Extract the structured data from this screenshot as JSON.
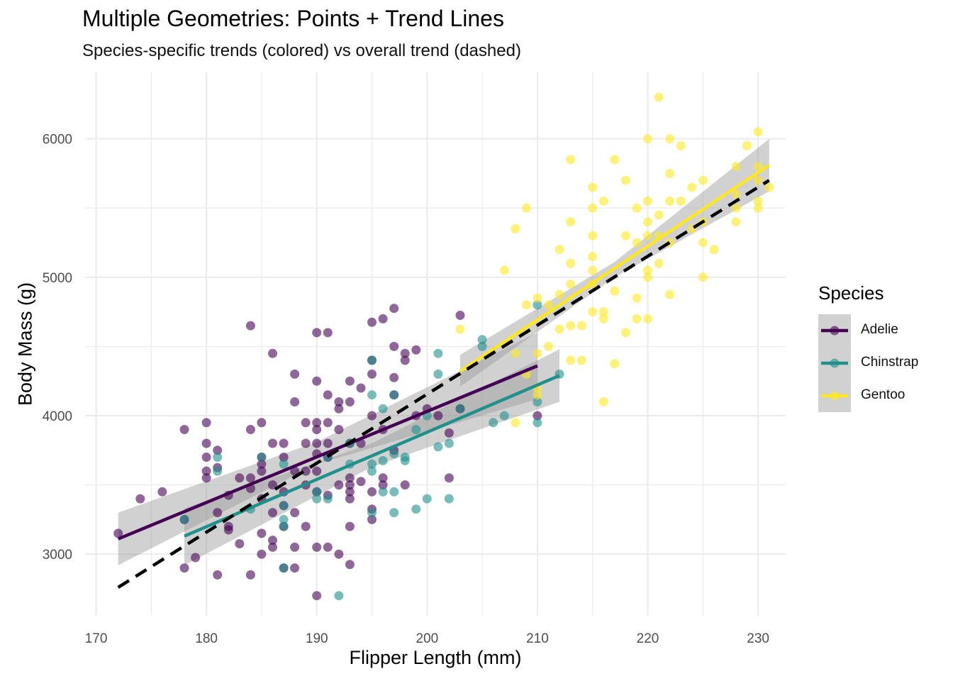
{
  "chart_data": {
    "type": "scatter",
    "title": "Multiple Geometries: Points + Trend Lines",
    "subtitle": "Species-specific trends (colored) vs overall trend (dashed)",
    "xlabel": "Flipper Length (mm)",
    "ylabel": "Body Mass (g)",
    "xlim": [
      169,
      232.5
    ],
    "ylim": [
      2555,
      6480
    ],
    "x_ticks": [
      170,
      180,
      190,
      200,
      210,
      220,
      230
    ],
    "y_ticks": [
      3000,
      4000,
      5000,
      6000
    ],
    "grid": true,
    "legend": {
      "title": "Species",
      "position": "right"
    },
    "series": [
      {
        "name": "Adelie",
        "color": "#440154",
        "points": [
          [
            172,
            3150
          ],
          [
            174,
            3400
          ],
          [
            176,
            3450
          ],
          [
            178,
            3900
          ],
          [
            178,
            3250
          ],
          [
            178,
            2900
          ],
          [
            179,
            2975
          ],
          [
            180,
            3950
          ],
          [
            180,
            3800
          ],
          [
            180,
            3700
          ],
          [
            180,
            3600
          ],
          [
            180,
            3550
          ],
          [
            181,
            3750
          ],
          [
            181,
            3625
          ],
          [
            181,
            3300
          ],
          [
            181,
            2850
          ],
          [
            182,
            3425
          ],
          [
            182,
            3200
          ],
          [
            182,
            3175
          ],
          [
            183,
            3550
          ],
          [
            183,
            3075
          ],
          [
            184,
            4650
          ],
          [
            184,
            3900
          ],
          [
            184,
            3550
          ],
          [
            184,
            3475
          ],
          [
            184,
            2850
          ],
          [
            185,
            3950
          ],
          [
            185,
            3700
          ],
          [
            185,
            3650
          ],
          [
            185,
            3600
          ],
          [
            185,
            3400
          ],
          [
            185,
            3150
          ],
          [
            185,
            3000
          ],
          [
            186,
            4450
          ],
          [
            186,
            3800
          ],
          [
            186,
            3500
          ],
          [
            186,
            3300
          ],
          [
            186,
            3100
          ],
          [
            186,
            3050
          ],
          [
            187,
            3800
          ],
          [
            187,
            3700
          ],
          [
            187,
            3450
          ],
          [
            187,
            3350
          ],
          [
            187,
            3200
          ],
          [
            187,
            2900
          ],
          [
            188,
            4300
          ],
          [
            188,
            4100
          ],
          [
            188,
            3600
          ],
          [
            188,
            3300
          ],
          [
            188,
            3050
          ],
          [
            188,
            2900
          ],
          [
            189,
            3950
          ],
          [
            189,
            3800
          ],
          [
            189,
            3600
          ],
          [
            189,
            3500
          ],
          [
            189,
            3200
          ],
          [
            190,
            4600
          ],
          [
            190,
            4250
          ],
          [
            190,
            3950
          ],
          [
            190,
            3900
          ],
          [
            190,
            3800
          ],
          [
            190,
            3725
          ],
          [
            190,
            3600
          ],
          [
            190,
            3450
          ],
          [
            190,
            3050
          ],
          [
            190,
            2700
          ],
          [
            191,
            4600
          ],
          [
            191,
            4150
          ],
          [
            191,
            3950
          ],
          [
            191,
            3800
          ],
          [
            191,
            3700
          ],
          [
            191,
            3425
          ],
          [
            191,
            3050
          ],
          [
            192,
            4100
          ],
          [
            192,
            4050
          ],
          [
            192,
            3900
          ],
          [
            192,
            3500
          ],
          [
            192,
            3000
          ],
          [
            193,
            4250
          ],
          [
            193,
            4100
          ],
          [
            193,
            3800
          ],
          [
            193,
            3550
          ],
          [
            193,
            3500
          ],
          [
            193,
            3450
          ],
          [
            193,
            3400
          ],
          [
            193,
            3200
          ],
          [
            193,
            2925
          ],
          [
            194,
            4200
          ],
          [
            194,
            3800
          ],
          [
            194,
            3525
          ],
          [
            195,
            4675
          ],
          [
            195,
            4400
          ],
          [
            195,
            4300
          ],
          [
            195,
            4000
          ],
          [
            195,
            3450
          ],
          [
            195,
            3325
          ],
          [
            195,
            3250
          ],
          [
            196,
            4700
          ],
          [
            196,
            3900
          ],
          [
            196,
            3550
          ],
          [
            196,
            3500
          ],
          [
            197,
            4775
          ],
          [
            197,
            4500
          ],
          [
            197,
            4275
          ],
          [
            197,
            4150
          ],
          [
            197,
            3750
          ],
          [
            198,
            4450
          ],
          [
            198,
            4400
          ],
          [
            198,
            3500
          ],
          [
            199,
            4475
          ],
          [
            199,
            4000
          ],
          [
            200,
            4050
          ],
          [
            201,
            4000
          ],
          [
            202,
            3875
          ],
          [
            202,
            3550
          ],
          [
            203,
            4725
          ],
          [
            203,
            4050
          ],
          [
            210,
            4000
          ]
        ]
      },
      {
        "name": "Chinstrap",
        "color": "#21908C",
        "points": [
          [
            178,
            3250
          ],
          [
            181,
            3700
          ],
          [
            181,
            3600
          ],
          [
            184,
            3325
          ],
          [
            185,
            3700
          ],
          [
            187,
            3650
          ],
          [
            187,
            3350
          ],
          [
            187,
            3250
          ],
          [
            187,
            3200
          ],
          [
            187,
            2900
          ],
          [
            190,
            3400
          ],
          [
            190,
            3450
          ],
          [
            191,
            3700
          ],
          [
            191,
            3400
          ],
          [
            192,
            2700
          ],
          [
            193,
            3650
          ],
          [
            193,
            3800
          ],
          [
            195,
            4400
          ],
          [
            195,
            4150
          ],
          [
            195,
            3650
          ],
          [
            195,
            3600
          ],
          [
            195,
            3300
          ],
          [
            196,
            4050
          ],
          [
            196,
            3675
          ],
          [
            196,
            3450
          ],
          [
            197,
            4150
          ],
          [
            197,
            3725
          ],
          [
            197,
            3450
          ],
          [
            197,
            3300
          ],
          [
            198,
            3675
          ],
          [
            198,
            3700
          ],
          [
            199,
            3900
          ],
          [
            199,
            3325
          ],
          [
            200,
            3400
          ],
          [
            200,
            4000
          ],
          [
            201,
            4450
          ],
          [
            201,
            4300
          ],
          [
            201,
            3775
          ],
          [
            202,
            3400
          ],
          [
            202,
            3800
          ],
          [
            203,
            4050
          ],
          [
            205,
            4550
          ],
          [
            205,
            4500
          ],
          [
            206,
            3950
          ],
          [
            207,
            4000
          ],
          [
            210,
            4800
          ],
          [
            210,
            4100
          ],
          [
            210,
            3950
          ],
          [
            212,
            4300
          ]
        ]
      },
      {
        "name": "Gentoo",
        "color": "#FDE725",
        "points": [
          [
            203,
            4625
          ],
          [
            207,
            5050
          ],
          [
            208,
            5350
          ],
          [
            208,
            4450
          ],
          [
            208,
            3950
          ],
          [
            209,
            5500
          ],
          [
            209,
            4800
          ],
          [
            209,
            4300
          ],
          [
            210,
            4850
          ],
          [
            210,
            4450
          ],
          [
            210,
            4200
          ],
          [
            210,
            4150
          ],
          [
            211,
            4800
          ],
          [
            211,
            4500
          ],
          [
            212,
            4875
          ],
          [
            212,
            4625
          ],
          [
            212,
            5200
          ],
          [
            213,
            5850
          ],
          [
            213,
            5400
          ],
          [
            213,
            5100
          ],
          [
            213,
            4950
          ],
          [
            213,
            4650
          ],
          [
            213,
            4400
          ],
          [
            214,
            4400
          ],
          [
            214,
            4650
          ],
          [
            215,
            5650
          ],
          [
            215,
            5500
          ],
          [
            215,
            5300
          ],
          [
            215,
            5150
          ],
          [
            215,
            5050
          ],
          [
            215,
            4950
          ],
          [
            215,
            4750
          ],
          [
            216,
            5550
          ],
          [
            216,
            4750
          ],
          [
            216,
            4700
          ],
          [
            216,
            4100
          ],
          [
            217,
            5850
          ],
          [
            217,
            4900
          ],
          [
            217,
            4375
          ],
          [
            218,
            5700
          ],
          [
            218,
            5300
          ],
          [
            218,
            4600
          ],
          [
            219,
            5500
          ],
          [
            219,
            5250
          ],
          [
            219,
            4850
          ],
          [
            219,
            4700
          ],
          [
            220,
            6000
          ],
          [
            220,
            5550
          ],
          [
            220,
            5400
          ],
          [
            220,
            5300
          ],
          [
            220,
            5050
          ],
          [
            220,
            5000
          ],
          [
            220,
            4700
          ],
          [
            221,
            6300
          ],
          [
            221,
            5450
          ],
          [
            221,
            5300
          ],
          [
            221,
            5100
          ],
          [
            222,
            6000
          ],
          [
            222,
            5750
          ],
          [
            222,
            5550
          ],
          [
            222,
            5250
          ],
          [
            222,
            4875
          ],
          [
            223,
            5950
          ],
          [
            223,
            5550
          ],
          [
            224,
            5650
          ],
          [
            224,
            5350
          ],
          [
            225,
            5700
          ],
          [
            225,
            5400
          ],
          [
            225,
            5250
          ],
          [
            225,
            5000
          ],
          [
            226,
            5200
          ],
          [
            228,
            5800
          ],
          [
            228,
            5600
          ],
          [
            228,
            5500
          ],
          [
            228,
            5400
          ],
          [
            229,
            5950
          ],
          [
            230,
            6050
          ],
          [
            230,
            5800
          ],
          [
            230,
            5700
          ],
          [
            230,
            5550
          ],
          [
            230,
            5500
          ],
          [
            231,
            5650
          ]
        ]
      }
    ],
    "trend_lines": [
      {
        "series": "Adelie",
        "x": [
          172,
          210
        ],
        "y": [
          3110,
          4360
        ],
        "ci_low": [
          2920,
          4120
        ],
        "ci_high": [
          3300,
          4600
        ],
        "ci_mid_x": 190,
        "ci_mid": [
          3650,
          3810
        ]
      },
      {
        "series": "Chinstrap",
        "x": [
          178,
          212
        ],
        "y": [
          3130,
          4290
        ],
        "ci_low": [
          2920,
          4100
        ],
        "ci_high": [
          3330,
          4480
        ],
        "ci_mid_x": 195,
        "ci_mid": [
          3630,
          3800
        ]
      },
      {
        "series": "Gentoo",
        "x": [
          203,
          231
        ],
        "y": [
          4320,
          5810
        ],
        "ci_low": [
          4210,
          5620
        ],
        "ci_high": [
          4440,
          6000
        ],
        "ci_mid_x": 217,
        "ci_mid": [
          5000,
          5110
        ]
      },
      {
        "series": "overall",
        "style": "dashed",
        "color": "#000000",
        "x": [
          172,
          231
        ],
        "y": [
          2760,
          5700
        ]
      }
    ]
  }
}
